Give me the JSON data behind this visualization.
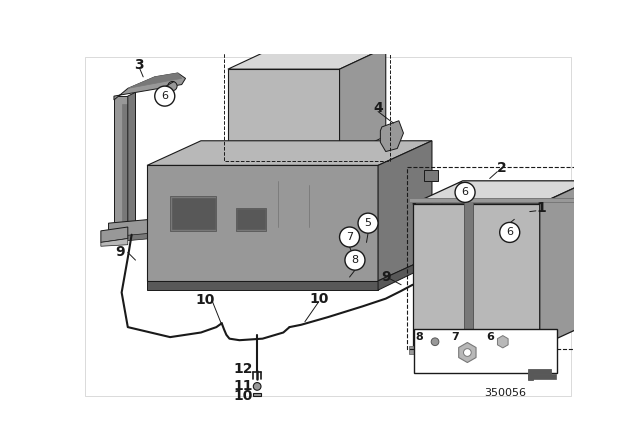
{
  "bg": "#ffffff",
  "lc": "#1a1a1a",
  "g1": "#d8d8d8",
  "g2": "#b8b8b8",
  "g3": "#989898",
  "g4": "#787878",
  "g5": "#585858",
  "diagram_number": "350056",
  "figsize": [
    6.4,
    4.48
  ],
  "dpi": 100
}
